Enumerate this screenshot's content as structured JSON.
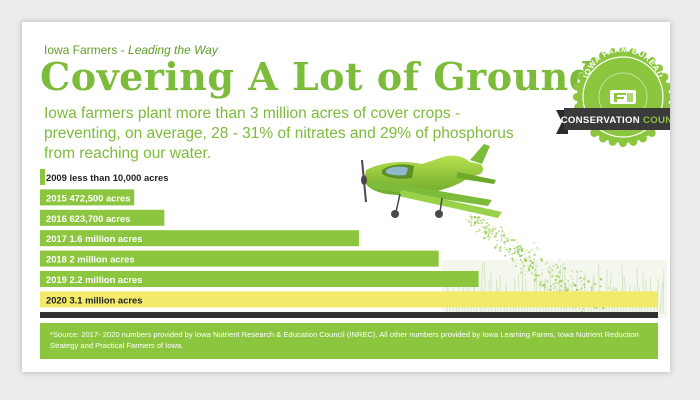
{
  "header": {
    "kicker_org": "Iowa Farmers - ",
    "kicker_tag": "Leading the Way",
    "title": "Covering A Lot of Ground",
    "subtitle": "Iowa farmers plant more than 3 million acres of cover crops - preventing, on average, 28 - 31% of nitrates and 29% of phosphorus from reaching our water."
  },
  "badge": {
    "top_text": "IOWA FARM BUREAU",
    "ribbon_left": "CONSERVATION",
    "ribbon_right": "COUNTS",
    "colors": {
      "badge_green": "#8cc63f",
      "ribbon": "#3a3a3a"
    }
  },
  "chart_data": {
    "type": "bar",
    "orientation": "horizontal",
    "unit": "acres",
    "categories": [
      "2009",
      "2015",
      "2016",
      "2017",
      "2018",
      "2019",
      "2020"
    ],
    "values": [
      10000,
      472500,
      623700,
      1600000,
      2000000,
      2200000,
      3100000
    ],
    "labels": [
      "2009  less than 10,000 acres",
      "2015  472,500 acres",
      "2016  623,700 acres",
      "2017  1.6 million acres",
      "2018  2 million acres",
      "2019  2.2 million acres",
      "2020  3.1 million acres"
    ],
    "xlim": [
      0,
      3100000
    ],
    "grid": false,
    "colors": {
      "bar": "#8cc63f",
      "highlight": "#f2eb6a",
      "text": "#1f1f1f",
      "label_on_bar": "#ffffff"
    }
  },
  "footnote": "*Source: 2017- 2020 numbers provided by Iowa Nutrient Research & Education Council (INREC).  All other numbers provided by Iowa Learning Farms, Iowa Nutrient Reduction Strategy and Practical Farmers of Iowa."
}
